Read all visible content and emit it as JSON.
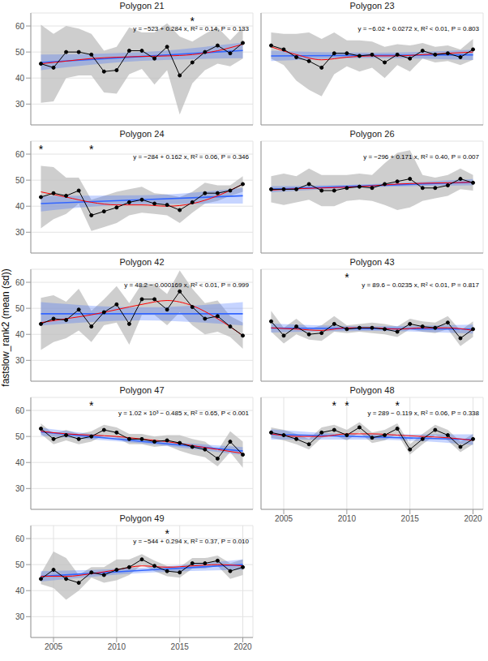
{
  "ylabel": "fastslow_rank2 (mean (sd))",
  "chart_data": [
    {
      "type": "line",
      "title": "Polygon 21",
      "annotation": "y = −523 + 0.284 x, R² = 0.14, P = 0.133",
      "color": "#000000",
      "marker": "circle",
      "grid": true,
      "tick_labels": "y",
      "xlim": [
        2003.2,
        2020.8
      ],
      "ylim": [
        22,
        65
      ],
      "xticks": [
        2005,
        2010,
        2015,
        2020
      ],
      "yticks": [
        30,
        40,
        50,
        60
      ],
      "x": [
        2004,
        2005,
        2006,
        2007,
        2008,
        2009,
        2010,
        2011,
        2012,
        2013,
        2014,
        2015,
        2016,
        2017,
        2018,
        2019,
        2020
      ],
      "values": [
        45.5,
        44,
        50,
        50,
        49,
        42.5,
        43,
        50.5,
        50.5,
        47.5,
        52,
        41,
        46,
        50,
        52.5,
        49.5,
        53.5
      ],
      "sd": [
        15,
        13,
        10,
        9,
        8,
        8,
        9,
        9,
        7,
        10,
        9,
        15,
        8,
        7,
        7,
        5,
        6
      ],
      "fit": {
        "color": "#3366FF",
        "x": [
          2004,
          2012,
          2020
        ],
        "values": [
          46,
          48.3,
          50.6
        ],
        "ci_low": [
          43,
          46.6,
          47.6
        ],
        "ci_high": [
          49,
          50,
          53.6
        ]
      },
      "smooth": {
        "color": "#FF0000",
        "x": [
          2004,
          2006,
          2008,
          2010,
          2012,
          2014,
          2016,
          2018,
          2020
        ],
        "values": [
          45.5,
          46.5,
          47.5,
          48,
          48.3,
          48.5,
          49,
          50.5,
          53
        ]
      },
      "significance": {
        "label": "*",
        "x": [
          2016
        ]
      }
    },
    {
      "type": "line",
      "title": "Polygon 23",
      "annotation": "y = −6.02 + 0.0272 x, R² < 0.01, P = 0.803",
      "color": "#000000",
      "marker": "circle",
      "grid": true,
      "tick_labels": false,
      "xlim": [
        2003.2,
        2020.8
      ],
      "ylim": [
        22,
        65
      ],
      "xticks": [
        2005,
        2010,
        2015,
        2020
      ],
      "yticks": [
        30,
        40,
        50,
        60
      ],
      "x": [
        2004,
        2005,
        2006,
        2007,
        2008,
        2009,
        2010,
        2011,
        2012,
        2013,
        2014,
        2015,
        2016,
        2017,
        2018,
        2019,
        2020
      ],
      "values": [
        52.5,
        51,
        48,
        46.5,
        44,
        49.5,
        49.5,
        48.5,
        49,
        46,
        49,
        47.5,
        50.5,
        49,
        49.5,
        48,
        51
      ],
      "sd": [
        5,
        6,
        9,
        11,
        11,
        8,
        5,
        6,
        5,
        6,
        4,
        5,
        3,
        3,
        3,
        3,
        4
      ],
      "fit": {
        "color": "#3366FF",
        "x": [
          2004,
          2012,
          2020
        ],
        "values": [
          48.5,
          48.7,
          48.9
        ],
        "ci_low": [
          46.5,
          47.7,
          46.9
        ],
        "ci_high": [
          50.5,
          49.7,
          50.9
        ]
      },
      "smooth": {
        "color": "#FF0000",
        "x": [
          2004,
          2006,
          2008,
          2010,
          2012,
          2014,
          2016,
          2018,
          2020
        ],
        "values": [
          52,
          49,
          47,
          48,
          48.5,
          48.5,
          49,
          49.5,
          50
        ]
      }
    },
    {
      "type": "line",
      "title": "Polygon 24",
      "annotation": "y = −284 + 0.162 x, R² = 0.06, P = 0.346",
      "color": "#000000",
      "marker": "circle",
      "grid": true,
      "tick_labels": "y",
      "xlim": [
        2003.2,
        2020.8
      ],
      "ylim": [
        22,
        65
      ],
      "xticks": [
        2005,
        2010,
        2015,
        2020
      ],
      "yticks": [
        30,
        40,
        50,
        60
      ],
      "x": [
        2004,
        2005,
        2006,
        2007,
        2008,
        2009,
        2010,
        2011,
        2012,
        2013,
        2014,
        2015,
        2016,
        2017,
        2018,
        2019,
        2020
      ],
      "values": [
        43.5,
        45,
        44,
        46,
        36.5,
        38,
        39.5,
        41.5,
        42.5,
        41,
        40.5,
        38.5,
        41.5,
        45,
        45,
        46,
        48.5
      ],
      "sd": [
        12,
        10,
        7,
        5,
        6,
        6,
        6,
        5,
        5,
        4,
        4,
        5,
        4,
        4,
        3,
        2,
        3
      ],
      "fit": {
        "color": "#3366FF",
        "x": [
          2004,
          2012,
          2020
        ],
        "values": [
          41,
          42.5,
          44
        ],
        "ci_low": [
          38,
          40.8,
          41
        ],
        "ci_high": [
          44,
          44.2,
          47
        ]
      },
      "smooth": {
        "color": "#FF0000",
        "x": [
          2004,
          2006,
          2008,
          2010,
          2012,
          2014,
          2016,
          2018,
          2020
        ],
        "values": [
          45.5,
          43.5,
          41.5,
          40.5,
          40.5,
          40,
          41,
          44,
          48.5
        ]
      },
      "significance": {
        "label": "*",
        "x": [
          2004,
          2008
        ]
      }
    },
    {
      "type": "line",
      "title": "Polygon 26",
      "annotation": "y = −296 + 0.171 x, R² = 0.40, P = 0.007",
      "color": "#000000",
      "marker": "circle",
      "grid": true,
      "tick_labels": false,
      "xlim": [
        2003.2,
        2020.8
      ],
      "ylim": [
        22,
        65
      ],
      "xticks": [
        2005,
        2010,
        2015,
        2020
      ],
      "yticks": [
        30,
        40,
        50,
        60
      ],
      "x": [
        2004,
        2005,
        2006,
        2007,
        2008,
        2009,
        2010,
        2011,
        2012,
        2013,
        2014,
        2015,
        2016,
        2017,
        2018,
        2019,
        2020
      ],
      "values": [
        46.5,
        46.5,
        46.5,
        48.5,
        46,
        46,
        47,
        47.5,
        47,
        48.5,
        49.5,
        50.5,
        47,
        47,
        48,
        50.5,
        49
      ],
      "sd": [
        5,
        6,
        5,
        6,
        6,
        6,
        5,
        5,
        5,
        8,
        11,
        11,
        5,
        4,
        4,
        4,
        3
      ],
      "fit": {
        "color": "#3366FF",
        "x": [
          2004,
          2012,
          2020
        ],
        "values": [
          46.5,
          47.9,
          49.2
        ],
        "ci_low": [
          45.3,
          47.3,
          48
        ],
        "ci_high": [
          47.7,
          48.5,
          50.4
        ]
      },
      "smooth": {
        "color": "#FF0000",
        "x": [
          2004,
          2006,
          2008,
          2010,
          2012,
          2014,
          2016,
          2018,
          2020
        ],
        "values": [
          46.2,
          46.7,
          47,
          47.3,
          47.8,
          48.5,
          48.8,
          49,
          49.2
        ]
      }
    },
    {
      "type": "line",
      "title": "Polygon 42",
      "annotation": "y = 48.2 − 0.000169 x, R² < 0.01, P = 0.999",
      "color": "#000000",
      "marker": "circle",
      "grid": true,
      "tick_labels": "y",
      "xlim": [
        2003.2,
        2020.8
      ],
      "ylim": [
        22,
        65
      ],
      "xticks": [
        2005,
        2010,
        2015,
        2020
      ],
      "yticks": [
        30,
        40,
        50,
        60
      ],
      "x": [
        2004,
        2005,
        2006,
        2007,
        2008,
        2009,
        2010,
        2011,
        2012,
        2013,
        2014,
        2015,
        2016,
        2017,
        2018,
        2019,
        2020
      ],
      "values": [
        44,
        46,
        45.5,
        49.5,
        43,
        48.5,
        51.5,
        44,
        53.5,
        53.5,
        49.5,
        56.5,
        50.5,
        46,
        47,
        43,
        39.5
      ],
      "sd": [
        10,
        9,
        7,
        8,
        6,
        5,
        7,
        8,
        6,
        6,
        6,
        8,
        7,
        6,
        6,
        4,
        5
      ],
      "fit": {
        "color": "#3366FF",
        "x": [
          2004,
          2012,
          2020
        ],
        "values": [
          47.9,
          47.9,
          47.9
        ],
        "ci_low": [
          43.4,
          45.4,
          43.4
        ],
        "ci_high": [
          52.4,
          50.4,
          52.4
        ]
      },
      "smooth": {
        "color": "#FF0000",
        "x": [
          2004,
          2006,
          2008,
          2010,
          2012,
          2014,
          2016,
          2018,
          2020
        ],
        "values": [
          44.5,
          46,
          47.5,
          49.5,
          51.5,
          53,
          51,
          46,
          39.5
        ]
      }
    },
    {
      "type": "line",
      "title": "Polygon 43",
      "annotation": "y = 89.6 − 0.0235 x, R² < 0.01, P = 0.817",
      "color": "#000000",
      "marker": "circle",
      "grid": true,
      "tick_labels": false,
      "xlim": [
        2003.2,
        2020.8
      ],
      "ylim": [
        22,
        65
      ],
      "xticks": [
        2005,
        2010,
        2015,
        2020
      ],
      "yticks": [
        30,
        40,
        50,
        60
      ],
      "x": [
        2004,
        2005,
        2006,
        2007,
        2008,
        2009,
        2010,
        2011,
        2012,
        2013,
        2014,
        2015,
        2016,
        2017,
        2018,
        2019,
        2020
      ],
      "values": [
        45,
        39.5,
        43,
        40,
        40.5,
        44,
        42,
        42.5,
        42.5,
        42,
        41,
        44,
        43,
        42.5,
        44.5,
        38.5,
        42
      ],
      "sd": [
        4,
        3,
        3,
        2,
        3,
        3,
        1.5,
        1.5,
        2,
        2,
        2,
        2,
        2,
        2,
        2.5,
        3,
        3
      ],
      "fit": {
        "color": "#3366FF",
        "x": [
          2004,
          2012,
          2020
        ],
        "values": [
          42.4,
          42.2,
          42
        ],
        "ci_low": [
          40.7,
          41.3,
          40.3
        ],
        "ci_high": [
          44.1,
          43.1,
          43.7
        ]
      },
      "smooth": {
        "color": "#FF0000",
        "x": [
          2004,
          2006,
          2008,
          2010,
          2012,
          2014,
          2016,
          2018,
          2020
        ],
        "values": [
          42.5,
          42,
          41.5,
          42.5,
          42.5,
          42,
          42.5,
          42.5,
          41.5
        ]
      },
      "significance": {
        "label": "*",
        "x": [
          2010
        ]
      }
    },
    {
      "type": "line",
      "title": "Polygon 47",
      "annotation": "y = 1.02 × 10³ − 0.485 x, R² = 0.65, P < 0.001",
      "color": "#000000",
      "marker": "circle",
      "grid": true,
      "tick_labels": "y",
      "xlim": [
        2003.2,
        2020.8
      ],
      "ylim": [
        22,
        65
      ],
      "xticks": [
        2005,
        2010,
        2015,
        2020
      ],
      "yticks": [
        30,
        40,
        50,
        60
      ],
      "x": [
        2004,
        2005,
        2006,
        2007,
        2008,
        2009,
        2010,
        2011,
        2012,
        2013,
        2014,
        2015,
        2016,
        2017,
        2018,
        2019,
        2020
      ],
      "values": [
        53,
        49,
        50.5,
        49,
        50,
        52.5,
        51.5,
        49,
        49,
        48,
        48.5,
        47.5,
        46,
        45,
        41.5,
        48,
        43
      ],
      "sd": [
        2,
        2,
        2,
        2,
        2,
        2,
        2,
        2,
        2,
        2,
        2,
        3,
        3,
        3,
        3,
        4,
        5
      ],
      "fit": {
        "color": "#3366FF",
        "x": [
          2004,
          2012,
          2020
        ],
        "values": [
          51.8,
          48.1,
          44.4
        ],
        "ci_low": [
          50.3,
          47.3,
          42.9
        ],
        "ci_high": [
          53.3,
          48.9,
          45.9
        ]
      },
      "smooth": {
        "color": "#FF0000",
        "x": [
          2004,
          2006,
          2008,
          2010,
          2012,
          2014,
          2016,
          2018,
          2020
        ],
        "values": [
          52,
          51,
          50.5,
          50,
          49,
          48,
          46.5,
          45,
          43.5
        ]
      },
      "significance": {
        "label": "*",
        "x": [
          2008
        ]
      }
    },
    {
      "type": "line",
      "title": "Polygon 48",
      "annotation": "y = 289 − 0.119 x, R² = 0.06, P = 0.338",
      "color": "#000000",
      "marker": "circle",
      "grid": true,
      "tick_labels": "x",
      "xlim": [
        2003.2,
        2020.8
      ],
      "ylim": [
        22,
        65
      ],
      "xticks": [
        2005,
        2010,
        2015,
        2020
      ],
      "yticks": [
        30,
        40,
        50,
        60
      ],
      "x": [
        2004,
        2005,
        2006,
        2007,
        2008,
        2009,
        2010,
        2011,
        2012,
        2013,
        2014,
        2015,
        2016,
        2017,
        2018,
        2019,
        2020
      ],
      "values": [
        51.5,
        50.5,
        49,
        47,
        51.5,
        52.5,
        50.5,
        53.5,
        49.5,
        50.5,
        53,
        45,
        49,
        52.5,
        50.5,
        46,
        49
      ],
      "sd": [
        2,
        2,
        2,
        2,
        2,
        2,
        2,
        2,
        2,
        2,
        2,
        2,
        2,
        2,
        2,
        2,
        2
      ],
      "fit": {
        "color": "#3366FF",
        "x": [
          2004,
          2012,
          2020
        ],
        "values": [
          50.8,
          49.8,
          48.8
        ],
        "ci_low": [
          48.8,
          48.8,
          46.8
        ],
        "ci_high": [
          52.8,
          50.8,
          50.8
        ]
      },
      "smooth": {
        "color": "#FF0000",
        "x": [
          2004,
          2006,
          2008,
          2010,
          2012,
          2014,
          2016,
          2018,
          2020
        ],
        "values": [
          51,
          50,
          50,
          51,
          51,
          50.5,
          50,
          49.5,
          48.5
        ]
      },
      "significance": {
        "label": "*",
        "x": [
          2009,
          2010,
          2014
        ]
      }
    },
    {
      "type": "line",
      "title": "Polygon 49",
      "annotation": "y = −544 + 0.294 x, R² = 0.37, P = 0.010",
      "color": "#000000",
      "marker": "circle",
      "grid": true,
      "xlim": [
        2003.2,
        2020.8
      ],
      "ylim": [
        22,
        65
      ],
      "xticks": [
        2005,
        2010,
        2015,
        2020
      ],
      "yticks": [
        30,
        40,
        50,
        60
      ],
      "x": [
        2004,
        2005,
        2006,
        2007,
        2008,
        2009,
        2010,
        2011,
        2012,
        2013,
        2014,
        2015,
        2016,
        2017,
        2018,
        2019,
        2020
      ],
      "values": [
        44.5,
        48,
        44.5,
        43,
        47,
        46,
        48,
        49,
        52,
        49.5,
        47.5,
        47,
        50.5,
        50.5,
        51.5,
        47.5,
        49
      ],
      "sd": [
        2,
        7,
        8,
        3,
        2,
        3,
        4,
        3,
        2,
        2,
        2,
        2,
        2,
        2,
        2,
        3,
        3
      ],
      "fit": {
        "color": "#3366FF",
        "x": [
          2004,
          2012,
          2020
        ],
        "values": [
          45.5,
          47.8,
          50
        ],
        "ci_low": [
          43.5,
          46.8,
          48
        ],
        "ci_high": [
          47.5,
          48.8,
          52
        ]
      },
      "smooth": {
        "color": "#FF0000",
        "x": [
          2004,
          2006,
          2008,
          2010,
          2012,
          2014,
          2016,
          2018,
          2020
        ],
        "values": [
          45.5,
          45.5,
          46.5,
          48,
          49.5,
          49,
          49.5,
          50,
          49.5
        ]
      },
      "significance": {
        "label": "*",
        "x": [
          2014
        ]
      }
    }
  ]
}
